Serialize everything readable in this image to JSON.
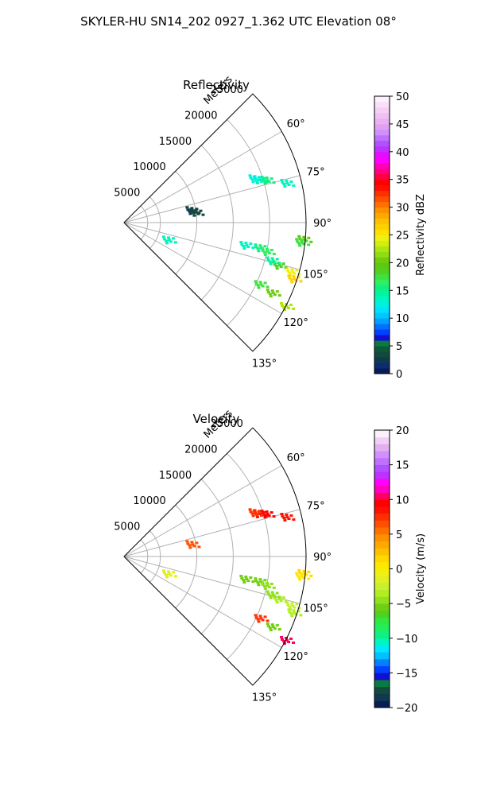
{
  "figure": {
    "title": "SKYLER-HU  SN14_202  0927_1.362 UTC Elevation 08°"
  },
  "chart_data": [
    {
      "type": "heatmap",
      "projection": "polar-sector",
      "title": "Reflectivity",
      "radial_label": "Meters",
      "radial_ticks": [
        5000,
        10000,
        15000,
        20000,
        25000
      ],
      "r_max": 25000,
      "theta_range": [
        45,
        135
      ],
      "theta_ticks": [
        "60°",
        "75°",
        "90°",
        "105°",
        "120°",
        "135°"
      ],
      "theta_tick_values": [
        60,
        75,
        90,
        105,
        120,
        135
      ],
      "colorbar": {
        "label": "Reflectivity dBZ",
        "min": 0,
        "max": 50,
        "ticks": [
          0,
          5,
          10,
          15,
          20,
          25,
          30,
          35,
          40,
          45,
          50
        ],
        "tick_labels": [
          "0",
          "5",
          "10",
          "15",
          "20",
          "25",
          "30",
          "35",
          "40",
          "45",
          "50"
        ],
        "colors": [
          "#081d58",
          "#0c2c6e",
          "#0f3a4e",
          "#124a3c",
          "#0a5a3a",
          "#0b7a40",
          "#1010d0",
          "#0040ff",
          "#0070ff",
          "#00a0ff",
          "#00c8ff",
          "#00e0ff",
          "#00f0e0",
          "#00f5c0",
          "#00f5a0",
          "#10f080",
          "#30f060",
          "#40e040",
          "#50d020",
          "#60c810",
          "#70cc10",
          "#90dd10",
          "#b0e610",
          "#d0ee10",
          "#f0f010",
          "#ffe000",
          "#ffd000",
          "#ffc000",
          "#ffa800",
          "#ff9000",
          "#ff7000",
          "#ff5000",
          "#ff3000",
          "#ff1000",
          "#ff0000",
          "#ff0040",
          "#ff0080",
          "#ff00c0",
          "#ff00ff",
          "#e010ff",
          "#c030ff",
          "#b050ff",
          "#c070ff",
          "#d090ff",
          "#e0a0f0",
          "#eab0f0",
          "#f0c0f4",
          "#f4d0f6",
          "#f8e0f8",
          "#fcf0fc"
        ]
      },
      "echoes": [
        {
          "r": 19500,
          "theta": 72,
          "value": 14
        },
        {
          "r": 20500,
          "theta": 73,
          "value": 15
        },
        {
          "r": 19000,
          "theta": 71,
          "value": 12
        },
        {
          "r": 23000,
          "theta": 76,
          "value": 13
        },
        {
          "r": 9500,
          "theta": 79,
          "value": 2
        },
        {
          "r": 10000,
          "theta": 81,
          "value": 3
        },
        {
          "r": 24800,
          "theta": 95,
          "value": 19
        },
        {
          "r": 24500,
          "theta": 96,
          "value": 17
        },
        {
          "r": 19000,
          "theta": 100,
          "value": 15
        },
        {
          "r": 17000,
          "theta": 100,
          "value": 13
        },
        {
          "r": 20000,
          "theta": 101,
          "value": 16
        },
        {
          "r": 22000,
          "theta": 105,
          "value": 18
        },
        {
          "r": 24000,
          "theta": 106,
          "value": 24
        },
        {
          "r": 24500,
          "theta": 108,
          "value": 26
        },
        {
          "r": 21000,
          "theta": 104,
          "value": 14
        },
        {
          "r": 20500,
          "theta": 114,
          "value": 17
        },
        {
          "r": 22500,
          "theta": 115,
          "value": 20
        },
        {
          "r": 25000,
          "theta": 117,
          "value": 22
        },
        {
          "r": 6500,
          "theta": 110,
          "value": 13
        }
      ]
    },
    {
      "type": "heatmap",
      "projection": "polar-sector",
      "title": "Velocity",
      "radial_label": "Meters",
      "radial_ticks": [
        5000,
        10000,
        15000,
        20000,
        25000
      ],
      "r_max": 25000,
      "theta_range": [
        45,
        135
      ],
      "theta_ticks": [
        "60°",
        "75°",
        "90°",
        "105°",
        "120°",
        "135°"
      ],
      "theta_tick_values": [
        60,
        75,
        90,
        105,
        120,
        135
      ],
      "colorbar": {
        "label": "Velocity (m/s)",
        "min": -20,
        "max": 20,
        "ticks": [
          -20,
          -15,
          -10,
          -5,
          0,
          5,
          10,
          15,
          20
        ],
        "tick_labels": [
          "−20",
          "−15",
          "−10",
          "−5",
          "0",
          "5",
          "10",
          "15",
          "20"
        ],
        "colors": [
          "#081d58",
          "#0f3a4e",
          "#124a3c",
          "#0b7a40",
          "#1010d0",
          "#0040ff",
          "#0080ff",
          "#00c0ff",
          "#00e8ff",
          "#00f5c0",
          "#10f080",
          "#20f060",
          "#30e840",
          "#50d020",
          "#70d010",
          "#90e020",
          "#b0ee20",
          "#c8f030",
          "#e0f020",
          "#f0f010",
          "#ffe800",
          "#ffd800",
          "#ffc000",
          "#ffa800",
          "#ff9000",
          "#ff7000",
          "#ff5000",
          "#ff3000",
          "#ff1000",
          "#ff0000",
          "#ff0060",
          "#ff00c0",
          "#ff00ff",
          "#c030ff",
          "#b050ff",
          "#c070ff",
          "#d090ff",
          "#e0b0f0",
          "#f0d0f4",
          "#fcf0fc"
        ]
      },
      "echoes": [
        {
          "r": 19500,
          "theta": 72,
          "value": 8
        },
        {
          "r": 20500,
          "theta": 73,
          "value": 9
        },
        {
          "r": 19000,
          "theta": 71,
          "value": 7
        },
        {
          "r": 23000,
          "theta": 76,
          "value": 8
        },
        {
          "r": 9500,
          "theta": 79,
          "value": 6
        },
        {
          "r": 24800,
          "theta": 95,
          "value": 1
        },
        {
          "r": 24500,
          "theta": 96,
          "value": 0
        },
        {
          "r": 19000,
          "theta": 100,
          "value": -6
        },
        {
          "r": 17000,
          "theta": 100,
          "value": -6
        },
        {
          "r": 20000,
          "theta": 101,
          "value": -5
        },
        {
          "r": 22000,
          "theta": 105,
          "value": -4
        },
        {
          "r": 24000,
          "theta": 106,
          "value": -3
        },
        {
          "r": 24500,
          "theta": 108,
          "value": -4
        },
        {
          "r": 21000,
          "theta": 104,
          "value": -5
        },
        {
          "r": 20500,
          "theta": 114,
          "value": 7
        },
        {
          "r": 22500,
          "theta": 115,
          "value": -6
        },
        {
          "r": 25000,
          "theta": 117,
          "value": 10
        },
        {
          "r": 6500,
          "theta": 110,
          "value": -2
        }
      ]
    }
  ]
}
